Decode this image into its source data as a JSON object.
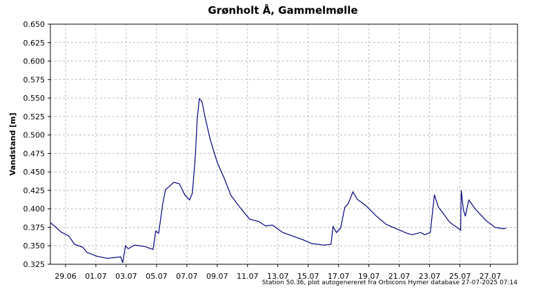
{
  "chart_data": {
    "type": "line",
    "title": "Grønholt Å, Gammelmølle",
    "ylabel": "Vandstand [m]",
    "annotation": "Station 50.36, plot autogenereret fra Orbicons Hymer database 27-07-2025 07:14",
    "xlim": [
      0,
      30.8
    ],
    "xticks": [
      {
        "value": 1,
        "label": "29.06"
      },
      {
        "value": 3,
        "label": "01.07"
      },
      {
        "value": 5,
        "label": "03.07"
      },
      {
        "value": 7,
        "label": "05.07"
      },
      {
        "value": 9,
        "label": "07.07"
      },
      {
        "value": 11,
        "label": "09.07"
      },
      {
        "value": 13,
        "label": "11.07"
      },
      {
        "value": 15,
        "label": "13.07"
      },
      {
        "value": 17,
        "label": "15.07"
      },
      {
        "value": 19,
        "label": "17.07"
      },
      {
        "value": 21,
        "label": "19.07"
      },
      {
        "value": 23,
        "label": "21.07"
      },
      {
        "value": 25,
        "label": "23.07"
      },
      {
        "value": 27,
        "label": "25.07"
      },
      {
        "value": 29,
        "label": "27.07"
      }
    ],
    "ylim": [
      0.325,
      0.65
    ],
    "yticks": [
      0.325,
      {
        "value": 0.35,
        "label": "0.350"
      },
      0.375,
      {
        "value": 0.4,
        "label": "0.400"
      },
      0.425,
      {
        "value": 0.45,
        "label": "0.450"
      },
      0.475,
      {
        "value": 0.5,
        "label": "0.500"
      },
      0.525,
      {
        "value": 0.55,
        "label": "0.550"
      },
      0.575,
      {
        "value": 0.6,
        "label": "0.600"
      },
      0.625,
      {
        "value": 0.65,
        "label": "0.650"
      }
    ],
    "grid": true,
    "x": [
      0,
      0.32,
      0.68,
      1.23,
      1.59,
      2.14,
      2.41,
      3.05,
      3.73,
      4.18,
      4.64,
      4.77,
      4.95,
      5.14,
      5.55,
      6.23,
      6.77,
      6.95,
      7.14,
      7.41,
      7.59,
      7.82,
      8.14,
      8.5,
      8.86,
      9.18,
      9.36,
      9.55,
      9.68,
      9.82,
      10,
      10.18,
      10.55,
      11,
      11.45,
      11.91,
      12.5,
      13.14,
      13.73,
      14.18,
      14.64,
      15.32,
      16,
      16.68,
      17.23,
      18.05,
      18.5,
      18.64,
      18.86,
      19.14,
      19.41,
      19.64,
      19.95,
      20.23,
      20.77,
      21.45,
      22.14,
      22.82,
      23.5,
      23.86,
      24.41,
      24.68,
      25.05,
      25.32,
      25.59,
      25.86,
      26.32,
      26.86,
      27.05,
      27.09,
      27.23,
      27.36,
      27.59,
      28.05,
      28.73,
      29.32,
      29.86,
      30.05
    ],
    "series": [
      {
        "color": "#00007f",
        "values": [
          0.381,
          0.376,
          0.369,
          0.363,
          0.352,
          0.348,
          0.341,
          0.336,
          0.333,
          0.334,
          0.335,
          0.327,
          0.35,
          0.346,
          0.351,
          0.349,
          0.345,
          0.37,
          0.367,
          0.407,
          0.426,
          0.43,
          0.436,
          0.434,
          0.419,
          0.412,
          0.421,
          0.468,
          0.521,
          0.549,
          0.545,
          0.526,
          0.493,
          0.463,
          0.442,
          0.418,
          0.402,
          0.386,
          0.383,
          0.377,
          0.378,
          0.368,
          0.363,
          0.358,
          0.353,
          0.351,
          0.352,
          0.376,
          0.368,
          0.374,
          0.402,
          0.407,
          0.423,
          0.413,
          0.405,
          0.391,
          0.379,
          0.373,
          0.367,
          0.365,
          0.368,
          0.365,
          0.368,
          0.419,
          0.402,
          0.395,
          0.382,
          0.374,
          0.371,
          0.425,
          0.399,
          0.39,
          0.412,
          0.399,
          0.384,
          0.375,
          0.373,
          0.374
        ]
      }
    ]
  }
}
